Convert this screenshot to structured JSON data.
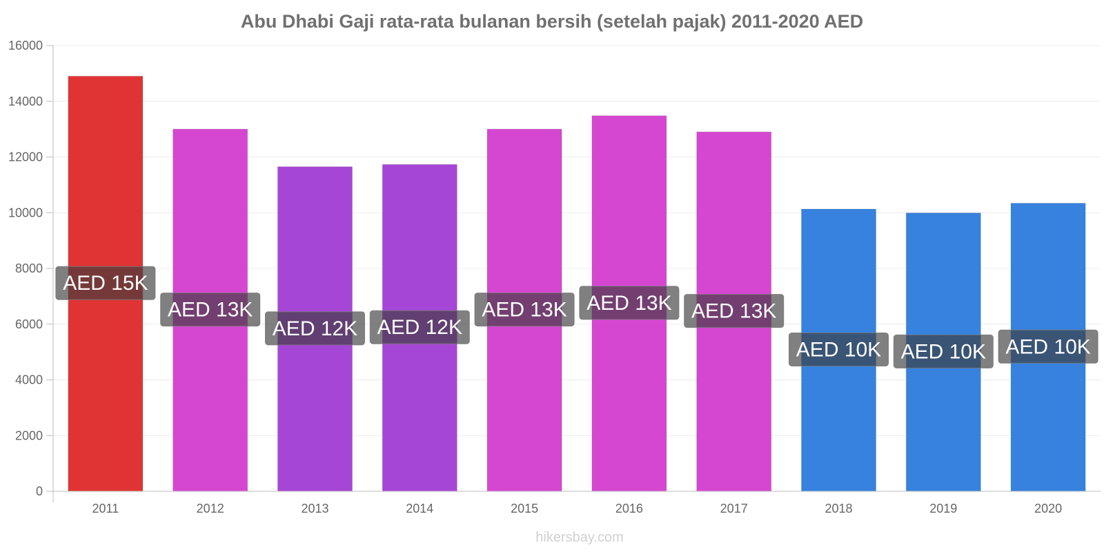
{
  "chart_data": {
    "type": "bar",
    "title": "Abu Dhabi Gaji rata-rata bulanan bersih (setelah pajak) 2011-2020 AED",
    "xlabel": "",
    "ylabel": "",
    "ylim": [
      0,
      16000
    ],
    "yticks": [
      0,
      2000,
      4000,
      6000,
      8000,
      10000,
      12000,
      14000,
      16000
    ],
    "grid": true,
    "legend": "none",
    "categories": [
      "2011",
      "2012",
      "2013",
      "2014",
      "2015",
      "2016",
      "2017",
      "2018",
      "2019",
      "2020"
    ],
    "values": [
      14900,
      13000,
      11650,
      11730,
      13000,
      13480,
      12900,
      10130,
      9990,
      10340
    ],
    "labels": [
      "AED 15K",
      "AED 13K",
      "AED 12K",
      "AED 12K",
      "AED 13K",
      "AED 13K",
      "AED 13K",
      "AED 10K",
      "AED 10K",
      "AED 10K"
    ],
    "colors": [
      "#e03434",
      "#d647d1",
      "#a646d6",
      "#a646d6",
      "#d647d1",
      "#d647d1",
      "#d647d1",
      "#3682de",
      "#3682de",
      "#3682de"
    ]
  },
  "watermark": "hikersbay.com"
}
